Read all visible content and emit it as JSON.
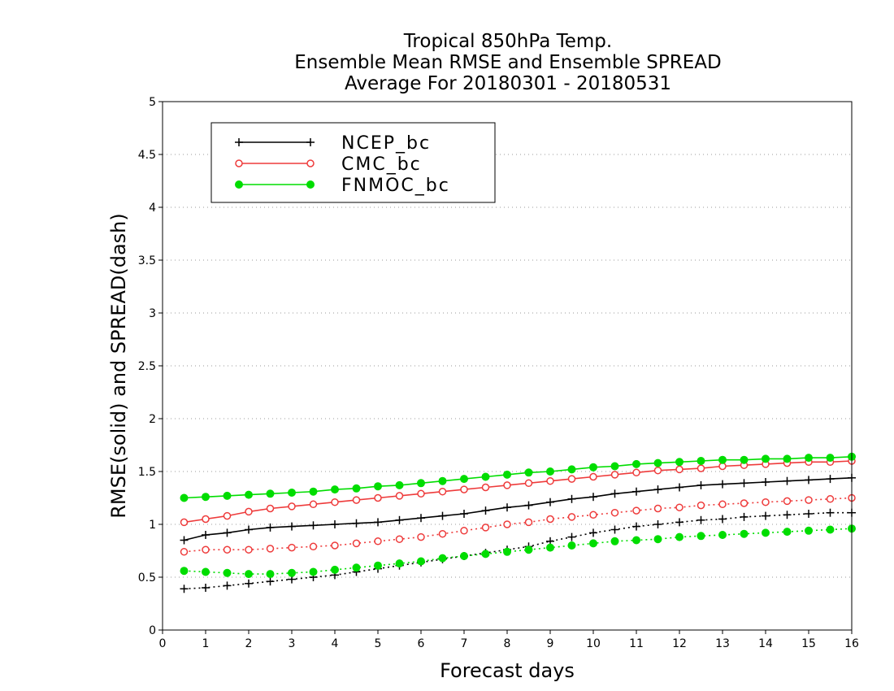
{
  "chart_data": {
    "type": "line",
    "title_lines": [
      "Tropical 850hPa Temp.",
      "Ensemble Mean RMSE and Ensemble SPREAD",
      "Average For 20180301 - 20180531"
    ],
    "xlabel": "Forecast days",
    "ylabel": "RMSE(solid) and SPREAD(dash)",
    "xlim": [
      0,
      16
    ],
    "ylim": [
      0,
      5
    ],
    "x_ticks": [
      "0",
      "1",
      "2",
      "3",
      "4",
      "5",
      "6",
      "7",
      "8",
      "9",
      "10",
      "11",
      "12",
      "13",
      "14",
      "15",
      "16"
    ],
    "y_ticks": [
      "0",
      "0.5",
      "1",
      "1.5",
      "2",
      "2.5",
      "3",
      "3.5",
      "4",
      "4.5",
      "5"
    ],
    "grid": "horizontal dotted",
    "legend_position": "top-left",
    "x": [
      0.5,
      1,
      1.5,
      2,
      2.5,
      3,
      3.5,
      4,
      4.5,
      5,
      5.5,
      6,
      6.5,
      7,
      7.5,
      8,
      8.5,
      9,
      9.5,
      10,
      10.5,
      11,
      11.5,
      12,
      12.5,
      13,
      13.5,
      14,
      14.5,
      15,
      15.5,
      16
    ],
    "series": [
      {
        "name": "NCEP_bc",
        "color": "#000000",
        "marker": "plus",
        "rmse": [
          0.85,
          0.9,
          0.92,
          0.95,
          0.97,
          0.98,
          0.99,
          1.0,
          1.01,
          1.02,
          1.04,
          1.06,
          1.08,
          1.1,
          1.13,
          1.16,
          1.18,
          1.21,
          1.24,
          1.26,
          1.29,
          1.31,
          1.33,
          1.35,
          1.37,
          1.38,
          1.39,
          1.4,
          1.41,
          1.42,
          1.43,
          1.44
        ],
        "spread": [
          0.39,
          0.4,
          0.42,
          0.44,
          0.46,
          0.48,
          0.5,
          0.52,
          0.55,
          0.58,
          0.61,
          0.64,
          0.67,
          0.7,
          0.73,
          0.76,
          0.79,
          0.84,
          0.88,
          0.92,
          0.95,
          0.98,
          1.0,
          1.02,
          1.04,
          1.05,
          1.07,
          1.08,
          1.09,
          1.1,
          1.11,
          1.11
        ]
      },
      {
        "name": "CMC_bc",
        "color": "#ee3b3b",
        "marker": "open-circle",
        "rmse": [
          1.02,
          1.05,
          1.08,
          1.12,
          1.15,
          1.17,
          1.19,
          1.21,
          1.23,
          1.25,
          1.27,
          1.29,
          1.31,
          1.33,
          1.35,
          1.37,
          1.39,
          1.41,
          1.43,
          1.45,
          1.47,
          1.49,
          1.51,
          1.52,
          1.53,
          1.55,
          1.56,
          1.57,
          1.58,
          1.59,
          1.59,
          1.6
        ],
        "spread": [
          0.74,
          0.76,
          0.76,
          0.76,
          0.77,
          0.78,
          0.79,
          0.8,
          0.82,
          0.84,
          0.86,
          0.88,
          0.91,
          0.94,
          0.97,
          1.0,
          1.02,
          1.05,
          1.07,
          1.09,
          1.11,
          1.13,
          1.15,
          1.16,
          1.18,
          1.19,
          1.2,
          1.21,
          1.22,
          1.23,
          1.24,
          1.25
        ]
      },
      {
        "name": "FNMOC_bc",
        "color": "#00dd00",
        "marker": "filled-circle",
        "rmse": [
          1.25,
          1.26,
          1.27,
          1.28,
          1.29,
          1.3,
          1.31,
          1.33,
          1.34,
          1.36,
          1.37,
          1.39,
          1.41,
          1.43,
          1.45,
          1.47,
          1.49,
          1.5,
          1.52,
          1.54,
          1.55,
          1.57,
          1.58,
          1.59,
          1.6,
          1.61,
          1.61,
          1.62,
          1.62,
          1.63,
          1.63,
          1.64
        ],
        "spread": [
          0.56,
          0.55,
          0.54,
          0.53,
          0.53,
          0.54,
          0.55,
          0.57,
          0.59,
          0.61,
          0.63,
          0.65,
          0.68,
          0.7,
          0.72,
          0.74,
          0.76,
          0.78,
          0.8,
          0.82,
          0.84,
          0.85,
          0.86,
          0.88,
          0.89,
          0.9,
          0.91,
          0.92,
          0.93,
          0.94,
          0.95,
          0.96
        ]
      }
    ]
  }
}
